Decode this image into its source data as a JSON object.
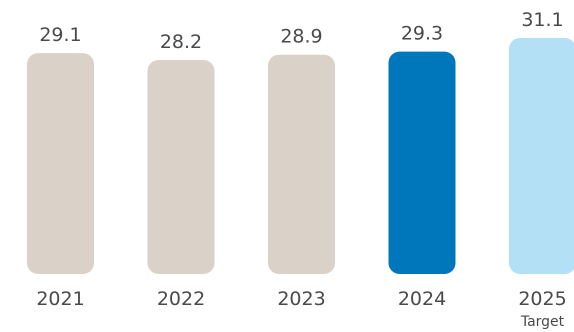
{
  "chart_data": {
    "type": "bar",
    "title": "",
    "xlabel": "",
    "ylabel": "",
    "categories": [
      "2021",
      "2022",
      "2023",
      "2024",
      "2025"
    ],
    "category_sublabels": [
      "",
      "",
      "",
      "",
      "Target"
    ],
    "values": [
      29.1,
      28.2,
      28.9,
      29.3,
      31.1
    ],
    "value_labels": [
      "29.1",
      "28.2",
      "28.9",
      "29.3",
      "31.1"
    ],
    "bar_colors": [
      "#dad1c8",
      "#dad1c8",
      "#dad1c8",
      "#0077bb",
      "#b3e0f5"
    ],
    "ylim": [
      0,
      31.1
    ],
    "grid": false,
    "legend": "none"
  }
}
